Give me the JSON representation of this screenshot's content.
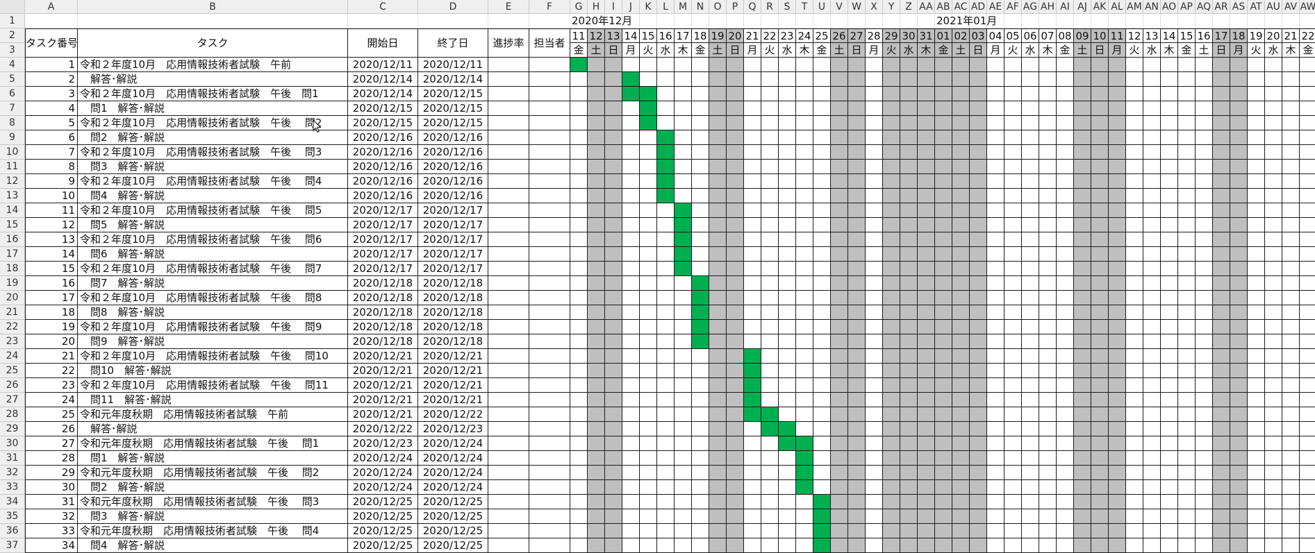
{
  "columns_left": [
    "A",
    "B",
    "C",
    "D",
    "E",
    "F"
  ],
  "columns_gantt": [
    "G",
    "H",
    "I",
    "J",
    "K",
    "L",
    "M",
    "N",
    "O",
    "P",
    "Q",
    "R",
    "S",
    "T",
    "U",
    "V",
    "W",
    "X",
    "Y",
    "Z",
    "AA",
    "AB",
    "AC",
    "AD",
    "AE",
    "AF",
    "AG",
    "AH",
    "AI",
    "AJ",
    "AK",
    "AL",
    "AM",
    "AN",
    "AO",
    "AP",
    "AQ",
    "AR",
    "AS",
    "AT",
    "AU",
    "AV",
    "AW"
  ],
  "row_numbers": [
    "1",
    "2",
    "3",
    "4",
    "5",
    "6",
    "7",
    "8",
    "9",
    "10",
    "11",
    "12",
    "13",
    "14",
    "15",
    "16",
    "17",
    "18",
    "19",
    "20",
    "21",
    "22",
    "23",
    "24",
    "25",
    "26",
    "27",
    "28",
    "29",
    "30",
    "31",
    "32",
    "33",
    "34",
    "35",
    "36",
    "37"
  ],
  "headers": {
    "task_no": "タスク番号",
    "task": "タスク",
    "start": "開始日",
    "end": "終了日",
    "progress": "進捗率",
    "owner": "担当者"
  },
  "months": [
    {
      "label": "2020年12月",
      "start_index": 0
    },
    {
      "label": "2021年01月",
      "start_index": 21
    }
  ],
  "days": [
    "11",
    "12",
    "13",
    "14",
    "15",
    "16",
    "17",
    "18",
    "19",
    "20",
    "21",
    "22",
    "23",
    "24",
    "25",
    "26",
    "27",
    "28",
    "29",
    "30",
    "31",
    "01",
    "02",
    "03",
    "04",
    "05",
    "06",
    "07",
    "08",
    "09",
    "10",
    "11",
    "12",
    "13",
    "14",
    "15",
    "16",
    "17",
    "18",
    "19",
    "20",
    "21",
    "22"
  ],
  "weekdays": [
    "金",
    "土",
    "日",
    "月",
    "火",
    "水",
    "木",
    "金",
    "土",
    "日",
    "月",
    "火",
    "水",
    "木",
    "金",
    "土",
    "日",
    "月",
    "火",
    "水",
    "木",
    "金",
    "土",
    "日",
    "月",
    "火",
    "水",
    "木",
    "金",
    "土",
    "日",
    "月",
    "火",
    "水",
    "木",
    "金",
    "土",
    "日",
    "月",
    "火",
    "水",
    "木",
    "金"
  ],
  "holiday_columns": [
    1,
    2,
    8,
    9,
    15,
    16,
    18,
    19,
    20,
    21,
    22,
    23,
    29,
    30,
    31,
    37,
    38
  ],
  "colors": {
    "bar": "#00b050",
    "holiday": "#bfbfbf",
    "header_bg": "#efefef",
    "grid": "#1a1a1a"
  },
  "tasks": [
    {
      "no": "1",
      "name": "令和２年度10月　応用情報技術者試験　午前",
      "start": "2020/12/11",
      "end": "2020/12/11",
      "bar_start": 0,
      "bar_end": 0
    },
    {
      "no": "2",
      "name": "　解答･解説",
      "start": "2020/12/14",
      "end": "2020/12/14",
      "bar_start": 3,
      "bar_end": 3
    },
    {
      "no": "3",
      "name": "令和２年度10月　応用情報技術者試験　午後　問1",
      "start": "2020/12/14",
      "end": "2020/12/15",
      "bar_start": 3,
      "bar_end": 4
    },
    {
      "no": "4",
      "name": "　問1　解答･解説",
      "start": "2020/12/15",
      "end": "2020/12/15",
      "bar_start": 4,
      "bar_end": 4
    },
    {
      "no": "5",
      "name": "令和２年度10月　応用情報技術者試験　午後　 問2",
      "start": "2020/12/15",
      "end": "2020/12/15",
      "bar_start": 4,
      "bar_end": 4
    },
    {
      "no": "6",
      "name": "　問2　解答･解説",
      "start": "2020/12/16",
      "end": "2020/12/16",
      "bar_start": 5,
      "bar_end": 5
    },
    {
      "no": "7",
      "name": "令和２年度10月　応用情報技術者試験　午後　 問3",
      "start": "2020/12/16",
      "end": "2020/12/16",
      "bar_start": 5,
      "bar_end": 5
    },
    {
      "no": "8",
      "name": "　問3　解答･解説",
      "start": "2020/12/16",
      "end": "2020/12/16",
      "bar_start": 5,
      "bar_end": 5
    },
    {
      "no": "9",
      "name": "令和２年度10月　応用情報技術者試験　午後　 問4",
      "start": "2020/12/16",
      "end": "2020/12/16",
      "bar_start": 5,
      "bar_end": 5
    },
    {
      "no": "10",
      "name": "　問4　解答･解説",
      "start": "2020/12/16",
      "end": "2020/12/16",
      "bar_start": 5,
      "bar_end": 5
    },
    {
      "no": "11",
      "name": "令和２年度10月　応用情報技術者試験　午後　 問5",
      "start": "2020/12/17",
      "end": "2020/12/17",
      "bar_start": 6,
      "bar_end": 6
    },
    {
      "no": "12",
      "name": "　問5　解答･解説",
      "start": "2020/12/17",
      "end": "2020/12/17",
      "bar_start": 6,
      "bar_end": 6
    },
    {
      "no": "13",
      "name": "令和２年度10月　応用情報技術者試験　午後　 問6",
      "start": "2020/12/17",
      "end": "2020/12/17",
      "bar_start": 6,
      "bar_end": 6
    },
    {
      "no": "14",
      "name": "　問6　解答･解説",
      "start": "2020/12/17",
      "end": "2020/12/17",
      "bar_start": 6,
      "bar_end": 6
    },
    {
      "no": "15",
      "name": "令和２年度10月　応用情報技術者試験　午後　 問7",
      "start": "2020/12/17",
      "end": "2020/12/17",
      "bar_start": 6,
      "bar_end": 6
    },
    {
      "no": "16",
      "name": "　問7　解答･解説",
      "start": "2020/12/18",
      "end": "2020/12/18",
      "bar_start": 7,
      "bar_end": 7
    },
    {
      "no": "17",
      "name": "令和２年度10月　応用情報技術者試験　午後　 問8",
      "start": "2020/12/18",
      "end": "2020/12/18",
      "bar_start": 7,
      "bar_end": 7
    },
    {
      "no": "18",
      "name": "　問8　解答･解説",
      "start": "2020/12/18",
      "end": "2020/12/18",
      "bar_start": 7,
      "bar_end": 7
    },
    {
      "no": "19",
      "name": "令和２年度10月　応用情報技術者試験　午後　 問9",
      "start": "2020/12/18",
      "end": "2020/12/18",
      "bar_start": 7,
      "bar_end": 7
    },
    {
      "no": "20",
      "name": "　問9　解答･解説",
      "start": "2020/12/18",
      "end": "2020/12/18",
      "bar_start": 7,
      "bar_end": 7
    },
    {
      "no": "21",
      "name": "令和２年度10月　応用情報技術者試験　午後　 問10",
      "start": "2020/12/21",
      "end": "2020/12/21",
      "bar_start": 10,
      "bar_end": 10
    },
    {
      "no": "22",
      "name": "　問10　解答･解説",
      "start": "2020/12/21",
      "end": "2020/12/21",
      "bar_start": 10,
      "bar_end": 10
    },
    {
      "no": "23",
      "name": "令和２年度10月　応用情報技術者試験　午後　 問11",
      "start": "2020/12/21",
      "end": "2020/12/21",
      "bar_start": 10,
      "bar_end": 10
    },
    {
      "no": "24",
      "name": "　問11　解答･解説",
      "start": "2020/12/21",
      "end": "2020/12/21",
      "bar_start": 10,
      "bar_end": 10
    },
    {
      "no": "25",
      "name": "令和元年度秋期　応用情報技術者試験　午前",
      "start": "2020/12/21",
      "end": "2020/12/22",
      "bar_start": 10,
      "bar_end": 11
    },
    {
      "no": "26",
      "name": "　解答･解説",
      "start": "2020/12/22",
      "end": "2020/12/23",
      "bar_start": 11,
      "bar_end": 12
    },
    {
      "no": "27",
      "name": "令和元年度秋期　応用情報技術者試験　午後　 問1",
      "start": "2020/12/23",
      "end": "2020/12/24",
      "bar_start": 12,
      "bar_end": 13
    },
    {
      "no": "28",
      "name": "　問1　解答･解説",
      "start": "2020/12/24",
      "end": "2020/12/24",
      "bar_start": 13,
      "bar_end": 13
    },
    {
      "no": "29",
      "name": "令和元年度秋期　応用情報技術者試験　午後　 問2",
      "start": "2020/12/24",
      "end": "2020/12/24",
      "bar_start": 13,
      "bar_end": 13
    },
    {
      "no": "30",
      "name": "　問2　解答･解説",
      "start": "2020/12/24",
      "end": "2020/12/24",
      "bar_start": 13,
      "bar_end": 13
    },
    {
      "no": "31",
      "name": "令和元年度秋期　応用情報技術者試験　午後　 問3",
      "start": "2020/12/25",
      "end": "2020/12/25",
      "bar_start": 14,
      "bar_end": 14
    },
    {
      "no": "32",
      "name": "　問3　解答･解説",
      "start": "2020/12/25",
      "end": "2020/12/25",
      "bar_start": 14,
      "bar_end": 14
    },
    {
      "no": "33",
      "name": "令和元年度秋期　応用情報技術者試験　午後　 問4",
      "start": "2020/12/25",
      "end": "2020/12/25",
      "bar_start": 14,
      "bar_end": 14
    },
    {
      "no": "34",
      "name": "　問4　解答･解説",
      "start": "2020/12/25",
      "end": "2020/12/25",
      "bar_start": 14,
      "bar_end": 14
    }
  ]
}
